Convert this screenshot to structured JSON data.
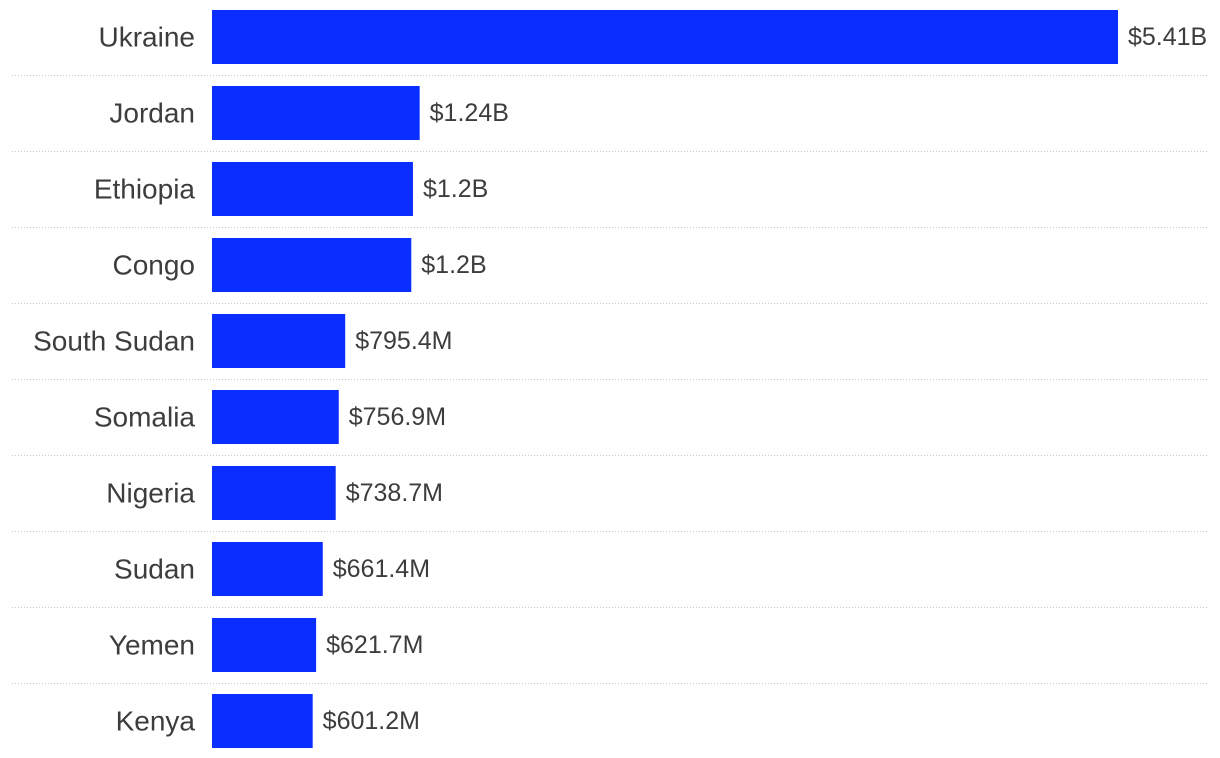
{
  "colors": {
    "bar": "#0a2eff",
    "text": "#3d3d3d",
    "separator": "#c8c8c8",
    "background": "#ffffff"
  },
  "chart_data": {
    "type": "bar",
    "orientation": "horizontal",
    "categories": [
      "Ukraine",
      "Jordan",
      "Ethiopia",
      "Congo",
      "South Sudan",
      "Somalia",
      "Nigeria",
      "Sudan",
      "Yemen",
      "Kenya"
    ],
    "values": [
      5410,
      1240,
      1200,
      1190,
      795.4,
      756.9,
      738.7,
      661.4,
      621.7,
      601.2
    ],
    "value_unit": "million USD",
    "value_labels": [
      "$5.41B",
      "$1.24B",
      "$1.2B",
      "$1.2B",
      "$795.4M",
      "$756.9M",
      "$738.7M",
      "$661.4M",
      "$621.7M",
      "$601.2M"
    ],
    "title": "",
    "xlabel": "",
    "ylabel": "",
    "grid": false,
    "legend": "none",
    "row_separators": "dotted"
  }
}
